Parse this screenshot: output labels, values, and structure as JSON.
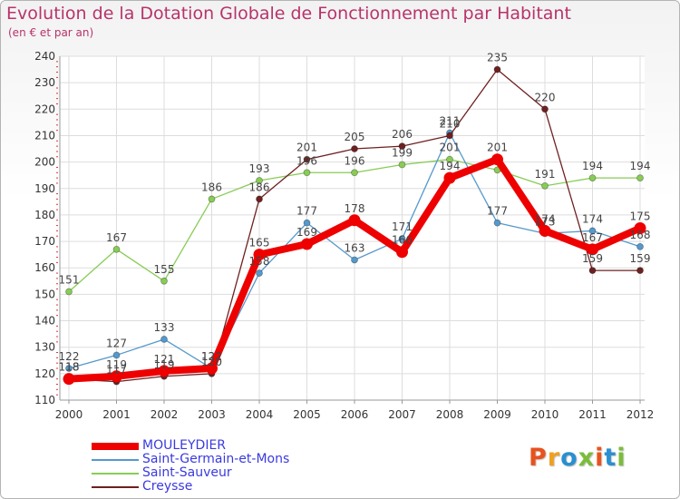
{
  "title": "Evolution de la Dotation Globale de Fonctionnement par Habitant",
  "subtitle": "(en € et par an)",
  "logo": "Proxiti",
  "chart_data": {
    "type": "line",
    "title": "Evolution de la Dotation Globale de Fonctionnement par Habitant",
    "subtitle": "(en € et par an)",
    "xlabel": "",
    "ylabel": "",
    "ylim": [
      110,
      240
    ],
    "yticks": [
      110,
      120,
      130,
      140,
      150,
      160,
      170,
      180,
      190,
      200,
      210,
      220,
      230,
      240
    ],
    "grid": true,
    "legend_position": "bottom-left",
    "categories": [
      "2000",
      "2001",
      "2002",
      "2003",
      "2004",
      "2005",
      "2006",
      "2007",
      "2008",
      "2009",
      "2010",
      "2011",
      "2012"
    ],
    "series": [
      {
        "name": "Saint-Sauveur",
        "color": "#88cc55",
        "values": [
          151,
          167,
          155,
          186,
          193,
          196,
          196,
          199,
          201,
          197,
          191,
          194,
          194
        ],
        "labels": [
          "151",
          "167",
          "155",
          "186",
          "193",
          "196",
          "196",
          "199",
          "201",
          "",
          "191",
          "194",
          "194"
        ]
      },
      {
        "name": "Saint-Germain-et-Mons",
        "color": "#5599cc",
        "values": [
          122,
          127,
          133,
          122,
          158,
          177,
          163,
          171,
          211,
          177,
          173,
          174,
          168
        ],
        "labels": [
          "122",
          "127",
          "133",
          "122",
          "158",
          "177",
          "163",
          "171",
          "211",
          "177",
          "173",
          "174",
          "168"
        ]
      },
      {
        "name": "Creysse",
        "color": "#6e2020",
        "values": [
          118,
          117,
          119,
          120,
          186,
          201,
          205,
          206,
          210,
          235,
          220,
          159,
          159
        ],
        "labels": [
          "118",
          "117",
          "119",
          "120",
          "186",
          "201",
          "205",
          "206",
          "210",
          "235",
          "220",
          "159",
          "159"
        ]
      },
      {
        "name": "MOULEYDIER",
        "color": "#ee0000",
        "values": [
          118,
          119,
          121,
          122,
          165,
          169,
          178,
          166,
          194,
          201,
          174,
          167,
          175
        ],
        "labels": [
          "118",
          "119",
          "121",
          "122",
          "165",
          "169",
          "178",
          "166",
          "194",
          "201",
          "174",
          "167",
          "175"
        ]
      }
    ],
    "legend": [
      "MOULEYDIER",
      "Saint-Germain-et-Mons",
      "Saint-Sauveur",
      "Creysse"
    ]
  },
  "logo_colors": [
    "#e8521c",
    "#f0a020",
    "#2a8fd0",
    "#7bbd3a",
    "#e8521c",
    "#2a8fd0",
    "#7bbd3a"
  ]
}
